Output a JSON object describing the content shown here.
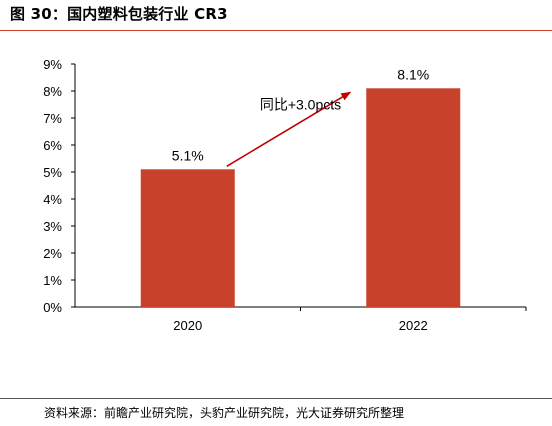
{
  "figure": {
    "title": "图 30：国内塑料包装行业 CR3",
    "source": "资料来源：前瞻产业研究院，头豹产业研究院，光大证券研究所整理"
  },
  "chart_data": {
    "type": "bar",
    "categories": [
      "2020",
      "2022"
    ],
    "values": [
      5.1,
      8.1
    ],
    "data_labels": [
      "5.1%",
      "8.1%"
    ],
    "ylim": [
      0,
      9
    ],
    "yticks": [
      "0%",
      "1%",
      "2%",
      "3%",
      "4%",
      "5%",
      "6%",
      "7%",
      "8%",
      "9%"
    ],
    "xlabel": "",
    "ylabel": "",
    "grid": false,
    "bar_color": "#c8412a",
    "annotation": {
      "text": "同比+3.0pcts",
      "arrow_color": "#c00000"
    }
  }
}
